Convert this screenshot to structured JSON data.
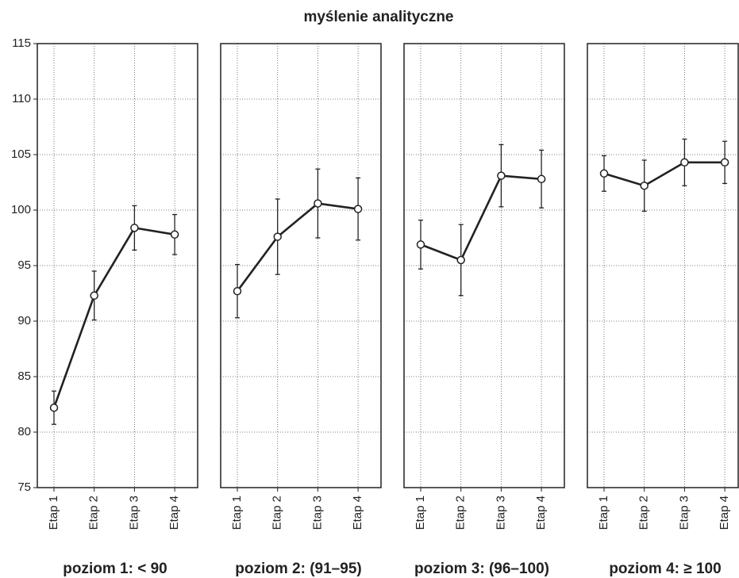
{
  "chart_data": [
    {
      "type": "line",
      "title": "myślenie analityczne",
      "xlabel": "poziom 1: < 90",
      "categories": [
        "Etap 1",
        "Etap 2",
        "Etap 3",
        "Etap 4"
      ],
      "values": [
        82.2,
        92.3,
        98.4,
        97.8
      ],
      "errors": [
        1.5,
        2.2,
        2.0,
        1.8
      ],
      "ylim": [
        75,
        115
      ],
      "yticks": [
        75,
        80,
        85,
        90,
        95,
        100,
        105,
        110,
        115
      ],
      "grid": true,
      "color": "#222222"
    },
    {
      "type": "line",
      "xlabel": "poziom 2: (91–95)",
      "categories": [
        "Etap 1",
        "Etap 2",
        "Etap 3",
        "Etap 4"
      ],
      "values": [
        92.7,
        97.6,
        100.6,
        100.1
      ],
      "errors": [
        2.4,
        3.4,
        3.1,
        2.8
      ],
      "ylim": [
        75,
        115
      ],
      "yticks": [
        75,
        80,
        85,
        90,
        95,
        100,
        105,
        110,
        115
      ],
      "grid": true,
      "color": "#222222"
    },
    {
      "type": "line",
      "xlabel": "poziom 3: (96–100)",
      "categories": [
        "Etap 1",
        "Etap 2",
        "Etap 3",
        "Etap 4"
      ],
      "values": [
        96.9,
        95.5,
        103.1,
        102.8
      ],
      "errors": [
        2.2,
        3.2,
        2.8,
        2.6
      ],
      "ylim": [
        75,
        115
      ],
      "yticks": [
        75,
        80,
        85,
        90,
        95,
        100,
        105,
        110,
        115
      ],
      "grid": true,
      "color": "#222222"
    },
    {
      "type": "line",
      "xlabel": "poziom 4: ≥ 100",
      "categories": [
        "Etap 1",
        "Etap 2",
        "Etap 3",
        "Etap 4"
      ],
      "values": [
        103.3,
        102.2,
        104.3,
        104.3
      ],
      "errors": [
        1.6,
        2.3,
        2.1,
        1.9
      ],
      "ylim": [
        75,
        115
      ],
      "yticks": [
        75,
        80,
        85,
        90,
        95,
        100,
        105,
        110,
        115
      ],
      "grid": true,
      "color": "#222222"
    }
  ]
}
